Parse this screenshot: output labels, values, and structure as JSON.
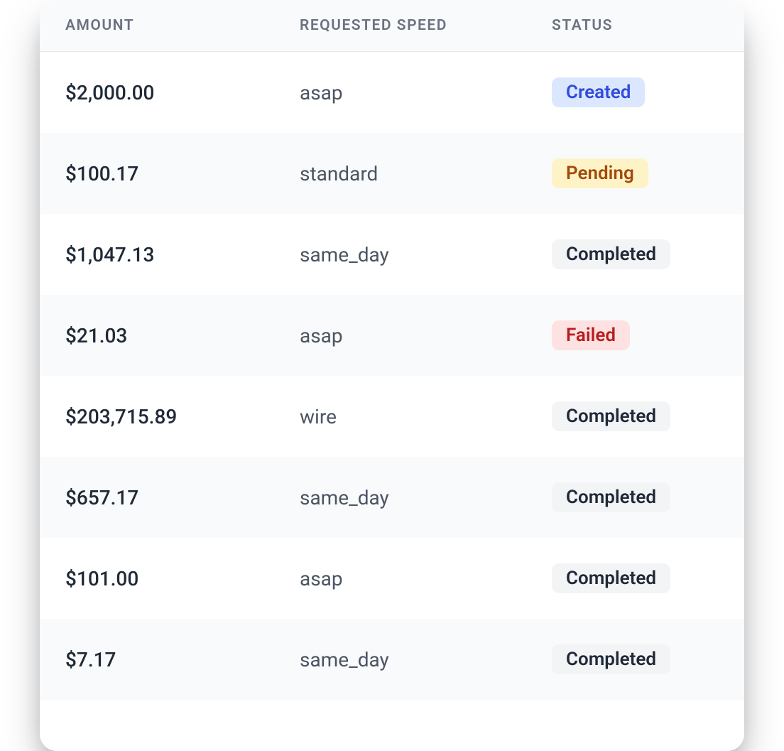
{
  "table": {
    "columns": [
      {
        "key": "amount",
        "label": "AMOUNT"
      },
      {
        "key": "speed",
        "label": "REQUESTED SPEED"
      },
      {
        "key": "status",
        "label": "STATUS"
      }
    ],
    "rows": [
      {
        "amount": "$2,000.00",
        "speed": "asap",
        "status": "Created",
        "status_type": "created"
      },
      {
        "amount": "$100.17",
        "speed": "standard",
        "status": "Pending",
        "status_type": "pending"
      },
      {
        "amount": "$1,047.13",
        "speed": "same_day",
        "status": "Completed",
        "status_type": "completed"
      },
      {
        "amount": "$21.03",
        "speed": "asap",
        "status": "Failed",
        "status_type": "failed"
      },
      {
        "amount": "$203,715.89",
        "speed": "wire",
        "status": "Completed",
        "status_type": "completed"
      },
      {
        "amount": "$657.17",
        "speed": "same_day",
        "status": "Completed",
        "status_type": "completed"
      },
      {
        "amount": "$101.00",
        "speed": "asap",
        "status": "Completed",
        "status_type": "completed"
      },
      {
        "amount": "$7.17",
        "speed": "same_day",
        "status": "Completed",
        "status_type": "completed"
      }
    ]
  },
  "status_styles": {
    "created": {
      "bg": "#dbe7ff",
      "fg": "#2f4cdd"
    },
    "pending": {
      "bg": "#fef3c7",
      "fg": "#a24a0b"
    },
    "completed": {
      "bg": "#f3f4f6",
      "fg": "#1f2937"
    },
    "failed": {
      "bg": "#fee2e2",
      "fg": "#b91c1c"
    }
  },
  "row_alt_bg": "#f9fafb",
  "row_bg": "#ffffff"
}
